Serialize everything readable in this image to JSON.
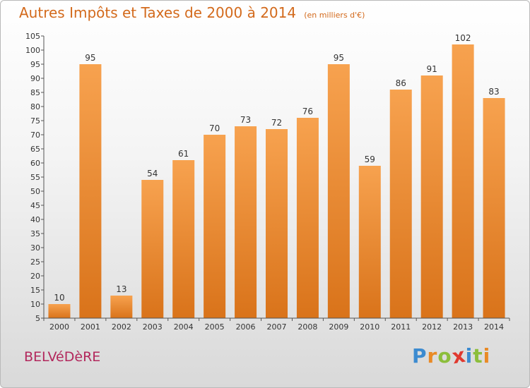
{
  "chart_data": {
    "type": "bar",
    "title": "Autres Impôts et Taxes de 2000 à 2014",
    "subtitle": "(en milliers d'€)",
    "categories": [
      "2000",
      "2001",
      "2002",
      "2003",
      "2004",
      "2005",
      "2006",
      "2007",
      "2008",
      "2009",
      "2010",
      "2011",
      "2012",
      "2013",
      "2014"
    ],
    "values": [
      10,
      95,
      13,
      54,
      61,
      70,
      73,
      72,
      76,
      95,
      59,
      86,
      91,
      102,
      83
    ],
    "yticks": [
      5,
      10,
      15,
      20,
      25,
      30,
      35,
      40,
      45,
      50,
      55,
      60,
      65,
      70,
      75,
      80,
      85,
      90,
      95,
      100,
      105
    ],
    "ylim": [
      5,
      105
    ],
    "grid": false,
    "colors": {
      "bar_light": "#f7a24f",
      "bar_dark": "#d9731a",
      "axis": "#555555",
      "text": "#333333"
    }
  },
  "footer": {
    "commune": "BELVéDèRE",
    "logo_letters": [
      {
        "ch": "P",
        "color": "#3c8bd0"
      },
      {
        "ch": "r",
        "color": "#e98a25"
      },
      {
        "ch": "o",
        "color": "#8cbe3c"
      },
      {
        "ch": "x",
        "color": "#e0392f"
      },
      {
        "ch": "i",
        "color": "#3c8bd0"
      },
      {
        "ch": "t",
        "color": "#8cbe3c"
      },
      {
        "ch": "i",
        "color": "#e98a25"
      }
    ]
  }
}
